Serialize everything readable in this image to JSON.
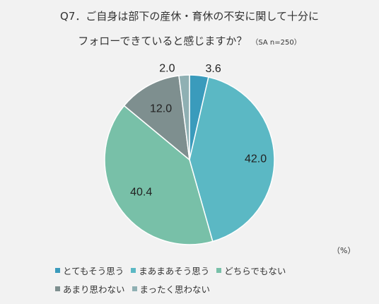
{
  "title": {
    "line1": "Q7．ご自身は部下の産休・育休の不安に関して十分に",
    "line2": "フォローできていると感じますか？",
    "note": "（SA n=250）"
  },
  "unit_label": "（%）",
  "chart_data": {
    "type": "pie",
    "categories": [
      "とてもそう思う",
      "まあまあそう思う",
      "どちらでもない",
      "あまり思わない",
      "まったく思わない"
    ],
    "values": [
      3.6,
      42.0,
      40.4,
      12.0,
      2.0
    ],
    "value_labels": [
      "3.6",
      "42.0",
      "40.4",
      "12.0",
      "2.0"
    ],
    "colors": [
      "#3a9bbc",
      "#5bb8c4",
      "#78c0a8",
      "#7e8f8f",
      "#8fb0b3"
    ],
    "start": "12 o'clock",
    "direction": "clockwise",
    "legend_position": "bottom"
  }
}
